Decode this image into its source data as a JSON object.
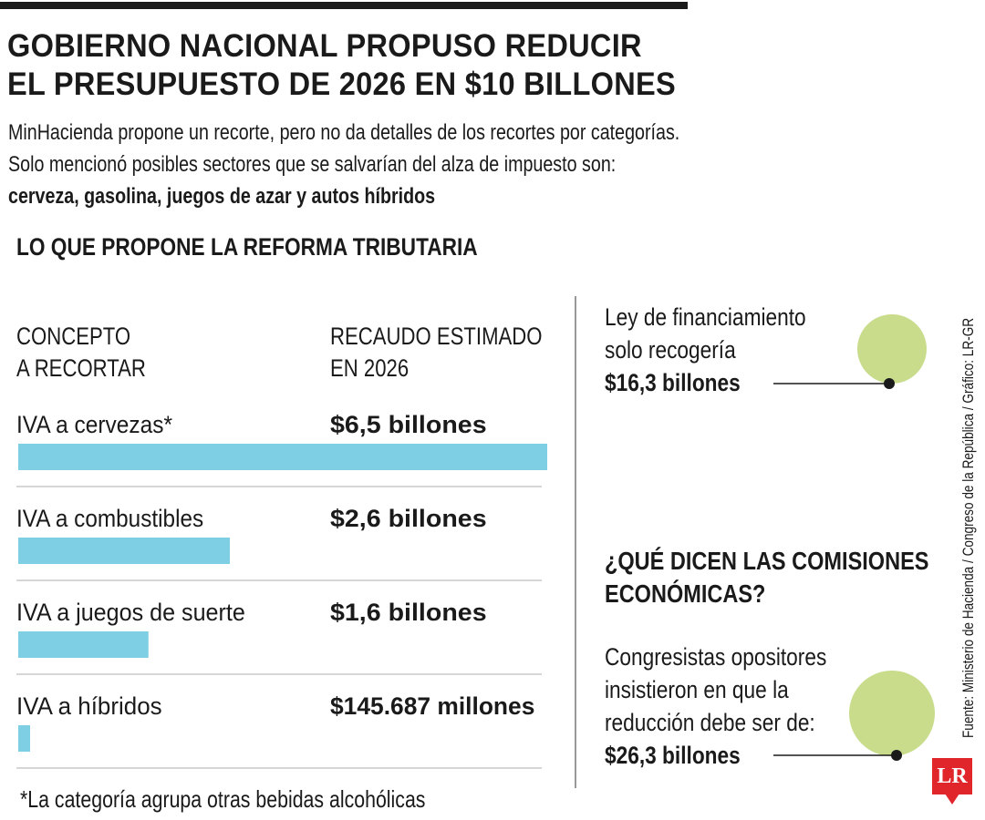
{
  "header": {
    "title_line1": "GOBIERNO NACIONAL PROPUSO REDUCIR",
    "title_line2": "EL PRESUPUESTO DE 2026 EN $10 BILLONES",
    "intro_line1": "MinHacienda propone un recorte, pero no da detalles de los recortes por categorías.",
    "intro_line2": "Solo mencionó posibles sectores que se salvarían del alza de impuesto son:",
    "intro_line3": "cerveza, gasolina, juegos de azar y autos híbridos"
  },
  "section_title": "LO QUE PROPONE LA REFORMA TRIBUTARIA",
  "table": {
    "col1_line1": "CONCEPTO",
    "col1_line2": "A RECORTAR",
    "col2_line1": "RECAUDO ESTIMADO",
    "col2_line2": "EN 2026"
  },
  "chart_data": {
    "type": "bar",
    "orientation": "horizontal",
    "categories": [
      "IVA a cervezas*",
      "IVA a combustibles",
      "IVA a juegos de suerte",
      "IVA a híbridos"
    ],
    "values": [
      6.5,
      2.6,
      1.6,
      0.145687
    ],
    "value_labels": [
      "$6,5 billones",
      "$2,6 billones",
      "$1,6 billones",
      "$145.687 millones"
    ],
    "unit": "billones de pesos",
    "bar_color": "#7ecee4"
  },
  "footnote": "*La categoría agrupa otras bebidas alcohólicas",
  "callout1": {
    "line1": "Ley de financiamiento",
    "line2": "solo recogería",
    "amount": "$16,3 billones"
  },
  "question": {
    "line1": "¿QUÉ DICEN LAS COMISIONES",
    "line2": "ECONÓMICAS?"
  },
  "callout2": {
    "line1": "Congresistas opositores",
    "line2": "insistieron en que la",
    "line3": "reducción debe ser de:",
    "amount": "$26,3 billones"
  },
  "colors": {
    "bar": "#7ecee4",
    "circle": "#c8dc8c",
    "logo": "#e0252b"
  },
  "source": "Fuente: Ministerio de Hacienda / Congreso de la República / Gráfico: LR-GR",
  "logo_text": "LR"
}
